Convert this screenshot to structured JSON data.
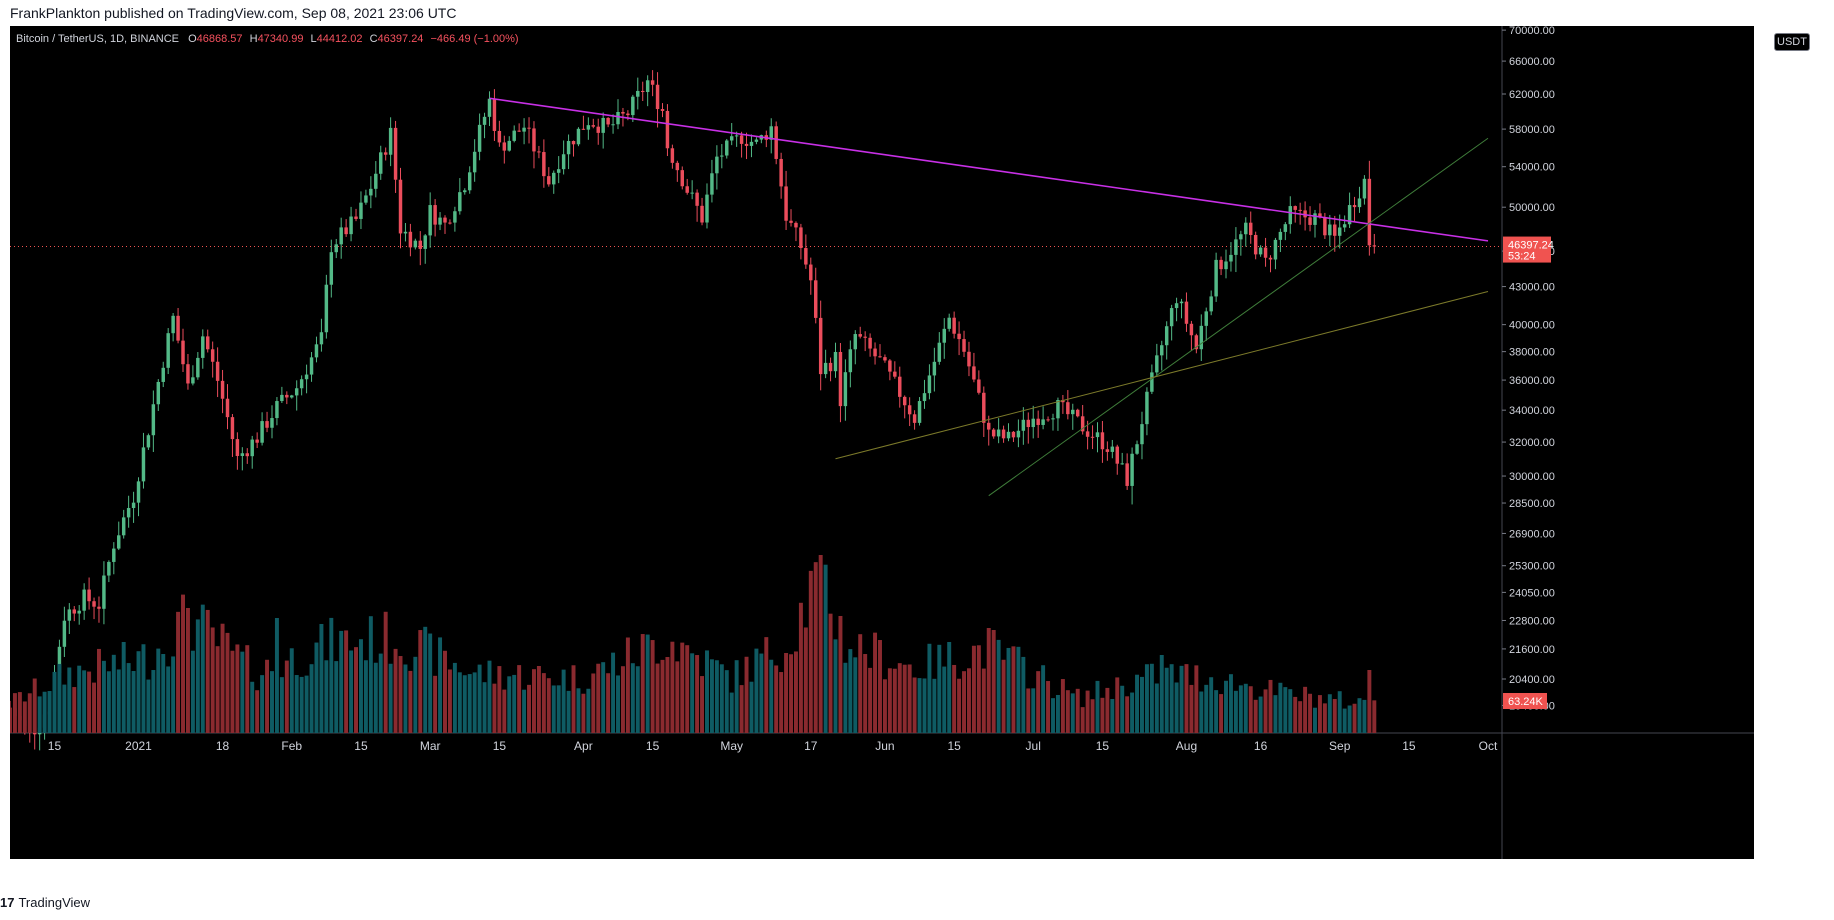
{
  "header": {
    "publisher": "FrankPlankton published on TradingView.com, Sep 08, 2021 23:06 UTC"
  },
  "symbol": {
    "name": "Bitcoin / TetherUS, 1D, BINANCE",
    "open_label": "O",
    "open": "46868.57",
    "high_label": "H",
    "high": "47340.99",
    "low_label": "L",
    "low": "44412.02",
    "close_label": "C",
    "close": "46397.24",
    "change": "−466.49 (−1.00%)"
  },
  "currency": "USDT",
  "footer": {
    "logo": "17",
    "brand": "TradingView"
  },
  "colors": {
    "up": "#53b987",
    "down": "#eb4d5c",
    "up_volume": "#0f5b63",
    "down_volume": "#8a2a2f",
    "trendline": "#c830e6",
    "last_price": "#f05350"
  },
  "chart_data": {
    "type": "candlestick",
    "title": "Bitcoin / TetherUS, 1D, BINANCE",
    "x_range": [
      "2020-12-06",
      "2021-10-01"
    ],
    "y_scale": "log",
    "y_ticks": [
      19400,
      20400,
      21600,
      22800,
      24050,
      25300,
      26900,
      28500,
      30000,
      32000,
      34000,
      36000,
      38000,
      40000,
      43000,
      46000,
      50000,
      54000,
      58000,
      62000,
      66000,
      70000
    ],
    "x_ticks": [
      {
        "label": "15",
        "date": "2020-12-15"
      },
      {
        "label": "2021",
        "date": "2021-01-01"
      },
      {
        "label": "18",
        "date": "2021-01-18"
      },
      {
        "label": "Feb",
        "date": "2021-02-01"
      },
      {
        "label": "15",
        "date": "2021-02-15"
      },
      {
        "label": "Mar",
        "date": "2021-03-01"
      },
      {
        "label": "15",
        "date": "2021-03-15"
      },
      {
        "label": "Apr",
        "date": "2021-04-01"
      },
      {
        "label": "15",
        "date": "2021-04-15"
      },
      {
        "label": "May",
        "date": "2021-05-01"
      },
      {
        "label": "17",
        "date": "2021-05-17"
      },
      {
        "label": "Jun",
        "date": "2021-06-01"
      },
      {
        "label": "15",
        "date": "2021-06-15"
      },
      {
        "label": "Jul",
        "date": "2021-07-01"
      },
      {
        "label": "15",
        "date": "2021-07-15"
      },
      {
        "label": "Aug",
        "date": "2021-08-01"
      },
      {
        "label": "16",
        "date": "2021-08-16"
      },
      {
        "label": "Sep",
        "date": "2021-09-01"
      },
      {
        "label": "15",
        "date": "2021-09-15"
      },
      {
        "label": "Oct",
        "date": "2021-10-01"
      }
    ],
    "price_anchors": [
      [
        "2020-12-06",
        19300
      ],
      [
        "2020-12-10",
        18300
      ],
      [
        "2020-12-14",
        19400
      ],
      [
        "2020-12-17",
        23000
      ],
      [
        "2020-12-21",
        23800
      ],
      [
        "2020-12-24",
        23500
      ],
      [
        "2020-12-27",
        26400
      ],
      [
        "2020-12-31",
        28900
      ],
      [
        "2021-01-03",
        32800
      ],
      [
        "2021-01-08",
        40500
      ],
      [
        "2021-01-11",
        35500
      ],
      [
        "2021-01-14",
        39200
      ],
      [
        "2021-01-17",
        36000
      ],
      [
        "2021-01-21",
        31000
      ],
      [
        "2021-01-25",
        32300
      ],
      [
        "2021-01-29",
        34200
      ],
      [
        "2021-02-02",
        35500
      ],
      [
        "2021-02-07",
        38900
      ],
      [
        "2021-02-09",
        46500
      ],
      [
        "2021-02-14",
        48800
      ],
      [
        "2021-02-17",
        52000
      ],
      [
        "2021-02-21",
        57500
      ],
      [
        "2021-02-23",
        48000
      ],
      [
        "2021-02-27",
        46300
      ],
      [
        "2021-03-01",
        49600
      ],
      [
        "2021-03-04",
        48400
      ],
      [
        "2021-03-08",
        52400
      ],
      [
        "2021-03-13",
        61200
      ],
      [
        "2021-03-15",
        56000
      ],
      [
        "2021-03-20",
        58300
      ],
      [
        "2021-03-25",
        52500
      ],
      [
        "2021-03-28",
        55800
      ],
      [
        "2021-04-02",
        59000
      ],
      [
        "2021-04-06",
        58100
      ],
      [
        "2021-04-10",
        59800
      ],
      [
        "2021-04-14",
        63500
      ],
      [
        "2021-04-17",
        60100
      ],
      [
        "2021-04-18",
        56200
      ],
      [
        "2021-04-22",
        51700
      ],
      [
        "2021-04-25",
        49000
      ],
      [
        "2021-04-28",
        54900
      ],
      [
        "2021-05-03",
        57200
      ],
      [
        "2021-05-06",
        56400
      ],
      [
        "2021-05-09",
        58200
      ],
      [
        "2021-05-12",
        49200
      ],
      [
        "2021-05-15",
        46400
      ],
      [
        "2021-05-17",
        43500
      ],
      [
        "2021-05-19",
        36700
      ],
      [
        "2021-05-22",
        37500
      ],
      [
        "2021-05-23",
        34700
      ],
      [
        "2021-05-26",
        39200
      ],
      [
        "2021-05-31",
        37300
      ],
      [
        "2021-06-07",
        33500
      ],
      [
        "2021-06-11",
        37300
      ],
      [
        "2021-06-14",
        40500
      ],
      [
        "2021-06-17",
        38100
      ],
      [
        "2021-06-22",
        32500
      ],
      [
        "2021-06-26",
        32200
      ],
      [
        "2021-07-01",
        33500
      ],
      [
        "2021-07-06",
        34200
      ],
      [
        "2021-07-12",
        32700
      ],
      [
        "2021-07-16",
        31800
      ],
      [
        "2021-07-20",
        29800
      ],
      [
        "2021-07-22",
        32100
      ],
      [
        "2021-07-26",
        37200
      ],
      [
        "2021-07-30",
        42200
      ],
      [
        "2021-08-03",
        38200
      ],
      [
        "2021-08-07",
        44500
      ],
      [
        "2021-08-13",
        47800
      ],
      [
        "2021-08-17",
        45000
      ],
      [
        "2021-08-22",
        49300
      ],
      [
        "2021-08-27",
        49000
      ],
      [
        "2021-08-31",
        47100
      ],
      [
        "2021-09-05",
        51700
      ],
      [
        "2021-09-06",
        52600
      ],
      [
        "2021-09-07",
        46800
      ],
      [
        "2021-09-08",
        46400
      ]
    ],
    "volume_anchors": [
      [
        "2020-12-06",
        30
      ],
      [
        "2020-12-18",
        60
      ],
      [
        "2021-01-03",
        75
      ],
      [
        "2021-01-11",
        115
      ],
      [
        "2021-01-25",
        60
      ],
      [
        "2021-02-09",
        90
      ],
      [
        "2021-02-22",
        95
      ],
      [
        "2021-03-10",
        60
      ],
      [
        "2021-04-01",
        55
      ],
      [
        "2021-04-18",
        95
      ],
      [
        "2021-05-01",
        55
      ],
      [
        "2021-05-12",
        90
      ],
      [
        "2021-05-19",
        160
      ],
      [
        "2021-05-24",
        90
      ],
      [
        "2021-06-07",
        65
      ],
      [
        "2021-06-22",
        85
      ],
      [
        "2021-07-10",
        35
      ],
      [
        "2021-07-27",
        60
      ],
      [
        "2021-08-06",
        55
      ],
      [
        "2021-08-20",
        40
      ],
      [
        "2021-09-05",
        30
      ],
      [
        "2021-09-08",
        35
      ]
    ],
    "volume_highlights": [
      [
        "2021-01-11",
        125
      ],
      [
        "2021-01-29",
        115
      ],
      [
        "2021-05-19",
        178
      ],
      [
        "2021-05-12",
        80
      ],
      [
        "2021-06-22",
        105
      ],
      [
        "2021-07-27",
        78
      ],
      [
        "2021-09-07",
        63
      ]
    ],
    "trendlines": [
      {
        "style": "resistance",
        "from": [
          "2021-03-13",
          61500
        ],
        "to": [
          "2021-10-01",
          46900
        ]
      },
      {
        "style": "support-green",
        "from": [
          "2021-06-22",
          28900
        ],
        "to": [
          "2021-10-01",
          57000
        ]
      },
      {
        "style": "support-olive",
        "from": [
          "2021-05-22",
          31000
        ],
        "to": [
          "2021-10-01",
          42600
        ]
      }
    ],
    "last_price": "46397.24",
    "countdown": "53:24",
    "last_volume": "63.24K"
  }
}
